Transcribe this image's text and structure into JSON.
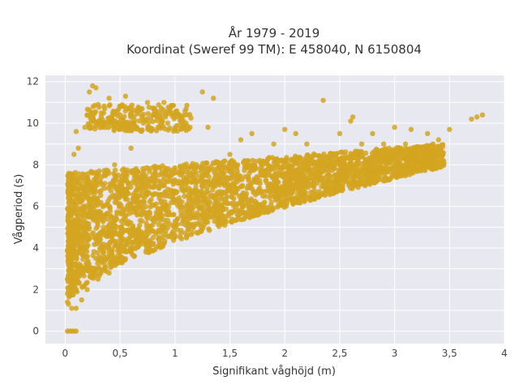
{
  "chart_data": {
    "type": "scatter",
    "title_line1": "År 1979 - 2019",
    "title_line2": "Koordinat (Sweref 99 TM): E 458040, N 6150804",
    "xlabel": "Signifikant våghöjd (m)",
    "ylabel": "Vågperiod (s)",
    "xlim": [
      -0.18,
      4.0
    ],
    "ylim": [
      -0.6,
      12.3
    ],
    "xticks": [
      0,
      0.5,
      1,
      1.5,
      2,
      2.5,
      3,
      3.5,
      4
    ],
    "xtick_labels": [
      "0",
      "0,5",
      "1",
      "1,5",
      "2",
      "2,5",
      "3",
      "3,5",
      "4"
    ],
    "yticks": [
      0,
      2,
      4,
      6,
      8,
      10,
      12
    ],
    "ytick_labels": [
      "0",
      "2",
      "4",
      "6",
      "8",
      "10",
      "12"
    ],
    "grid": true,
    "marker_color": "#D4A520",
    "plot_background": "#E8E8F0",
    "points": [
      [
        0.02,
        0.0
      ],
      [
        0.04,
        0.0
      ],
      [
        0.06,
        0.0
      ],
      [
        0.08,
        0.0
      ],
      [
        0.1,
        0.0
      ],
      [
        0.03,
        1.3
      ],
      [
        0.06,
        1.1
      ],
      [
        0.1,
        1.1
      ],
      [
        0.02,
        2.5
      ],
      [
        0.04,
        3.2
      ],
      [
        0.03,
        5.8
      ],
      [
        0.05,
        7.0
      ],
      [
        0.08,
        8.5
      ],
      [
        0.1,
        9.6
      ],
      [
        0.12,
        8.8
      ],
      [
        0.15,
        1.5
      ],
      [
        0.15,
        4.0
      ],
      [
        0.15,
        6.5
      ],
      [
        0.18,
        9.8
      ],
      [
        0.2,
        10.4
      ],
      [
        0.22,
        11.5
      ],
      [
        0.25,
        11.8
      ],
      [
        0.28,
        11.7
      ],
      [
        0.3,
        10.9
      ],
      [
        0.2,
        2.0
      ],
      [
        0.25,
        3.0
      ],
      [
        0.25,
        5.5
      ],
      [
        0.3,
        7.5
      ],
      [
        0.35,
        10.5
      ],
      [
        0.4,
        11.2
      ],
      [
        0.3,
        2.5
      ],
      [
        0.35,
        4.0
      ],
      [
        0.4,
        6.0
      ],
      [
        0.45,
        8.0
      ],
      [
        0.5,
        10.8
      ],
      [
        0.55,
        11.3
      ],
      [
        0.6,
        10.4
      ],
      [
        0.4,
        2.8
      ],
      [
        0.5,
        3.5
      ],
      [
        0.5,
        6.5
      ],
      [
        0.6,
        3.8
      ],
      [
        0.6,
        8.8
      ],
      [
        0.7,
        4.2
      ],
      [
        0.7,
        10.7
      ],
      [
        0.75,
        11.0
      ],
      [
        0.8,
        4.5
      ],
      [
        0.8,
        7.5
      ],
      [
        0.9,
        11.0
      ],
      [
        0.9,
        5.0
      ],
      [
        1.0,
        10.4
      ],
      [
        1.0,
        5.2
      ],
      [
        1.1,
        10.0
      ],
      [
        1.2,
        5.5
      ],
      [
        1.25,
        11.5
      ],
      [
        1.3,
        9.8
      ],
      [
        1.35,
        11.2
      ],
      [
        1.4,
        6.0
      ],
      [
        1.5,
        8.5
      ],
      [
        1.6,
        9.2
      ],
      [
        1.6,
        6.3
      ],
      [
        1.7,
        9.5
      ],
      [
        1.8,
        7.5
      ],
      [
        1.8,
        6.5
      ],
      [
        1.9,
        9.0
      ],
      [
        2.0,
        9.7
      ],
      [
        2.0,
        6.8
      ],
      [
        2.1,
        9.5
      ],
      [
        2.1,
        7.0
      ],
      [
        2.2,
        9.0
      ],
      [
        2.2,
        7.2
      ],
      [
        2.35,
        11.1
      ],
      [
        2.4,
        8.0
      ],
      [
        2.5,
        9.5
      ],
      [
        2.5,
        7.5
      ],
      [
        2.6,
        10.1
      ],
      [
        2.62,
        10.3
      ],
      [
        2.7,
        9.0
      ],
      [
        2.75,
        8.0
      ],
      [
        2.8,
        9.5
      ],
      [
        2.9,
        9.0
      ],
      [
        3.0,
        9.8
      ],
      [
        3.05,
        8.5
      ],
      [
        3.1,
        9.0
      ],
      [
        3.15,
        9.7
      ],
      [
        3.2,
        8.8
      ],
      [
        3.3,
        9.5
      ],
      [
        3.35,
        9.0
      ],
      [
        3.4,
        9.2
      ],
      [
        3.5,
        9.7
      ],
      [
        3.7,
        10.2
      ],
      [
        3.75,
        10.3
      ],
      [
        3.8,
        10.4
      ]
    ]
  }
}
